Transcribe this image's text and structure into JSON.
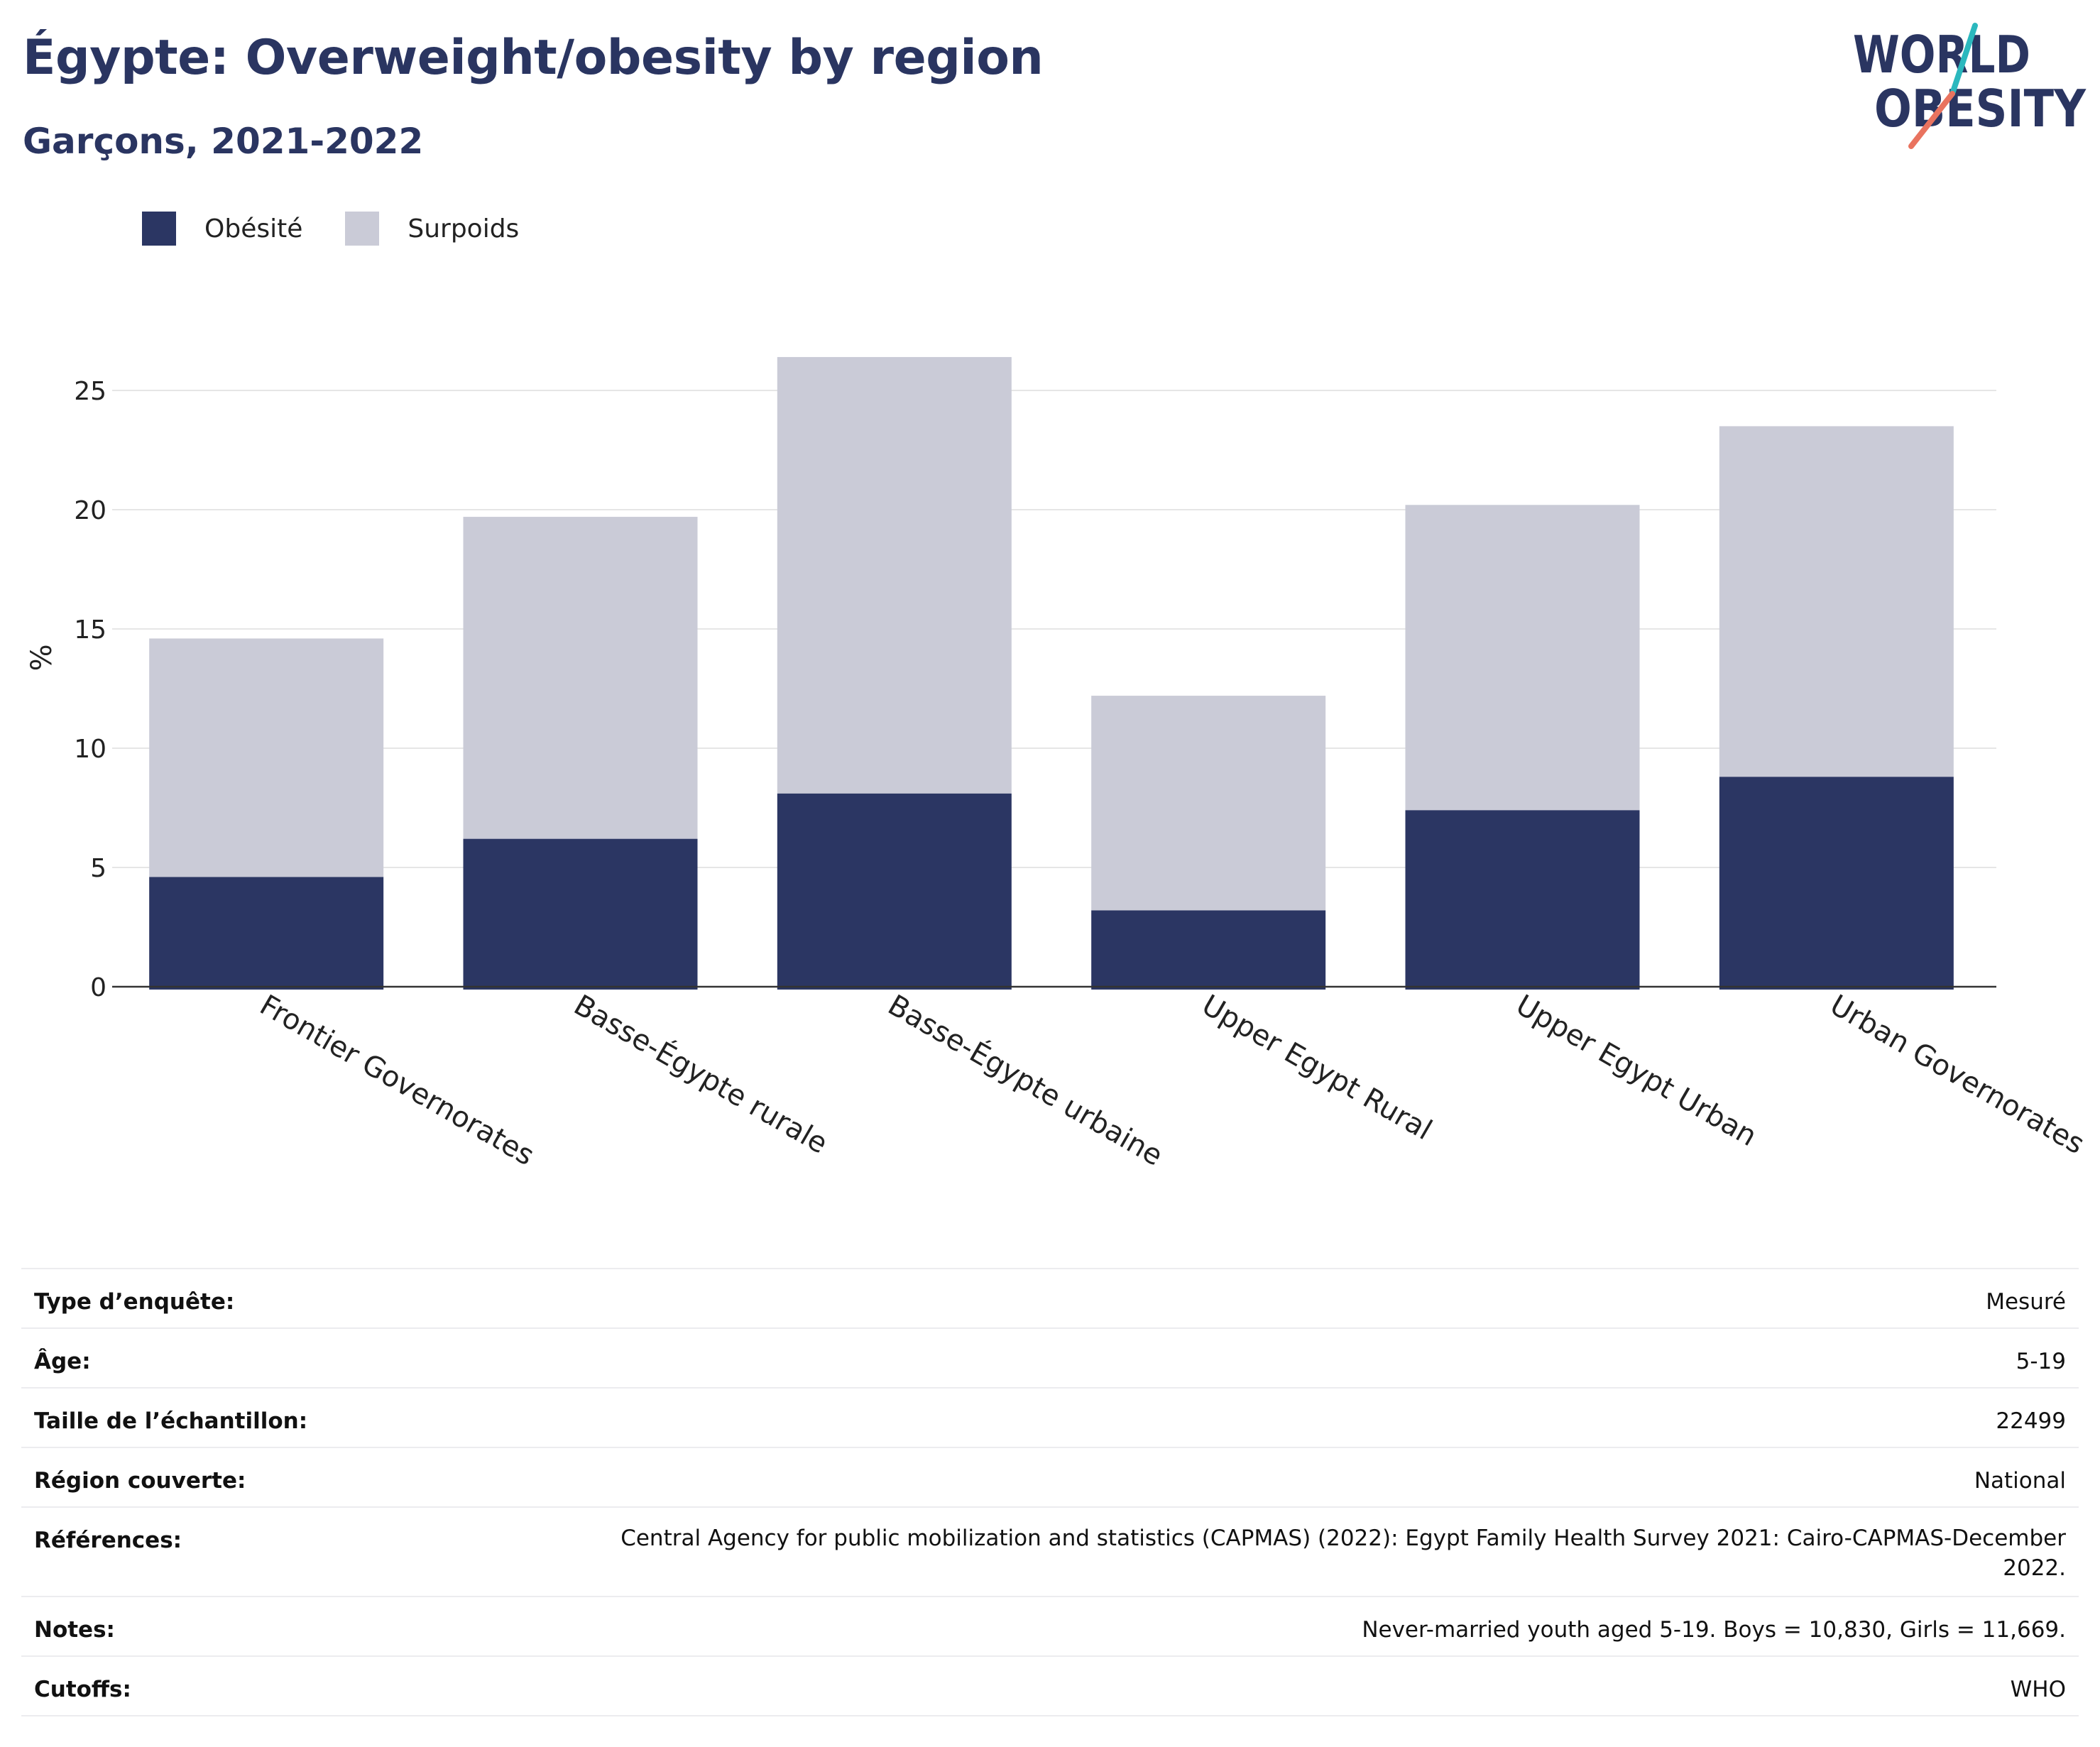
{
  "header": {
    "title": "Égypte: Overweight/obesity by region",
    "subtitle": "Garçons, 2021-2022"
  },
  "logo": {
    "line1": "WORLD",
    "line2": "OBESITY"
  },
  "legend": [
    {
      "label": "Obésité",
      "color": "#2b3663"
    },
    {
      "label": "Surpoids",
      "color": "#cacbd7"
    }
  ],
  "colors": {
    "obesity": "#2b3663",
    "overweight": "#cacbd7",
    "grid": "#e6e6e6",
    "axis": "#333333"
  },
  "chart_data": {
    "type": "bar",
    "stacked": true,
    "categories": [
      "Frontier Governorates",
      "Basse-Égypte rurale",
      "Basse-Égypte urbaine",
      "Upper Egypt Rural",
      "Upper Egypt Urban",
      "Urban Governorates"
    ],
    "series": [
      {
        "name": "Obésité",
        "values": [
          4.6,
          6.2,
          8.1,
          3.2,
          7.4,
          8.8
        ]
      },
      {
        "name": "Surpoids",
        "values": [
          10.0,
          13.5,
          18.3,
          9.0,
          12.8,
          14.7
        ]
      }
    ],
    "ylabel": "%",
    "xlabel": "",
    "ylim": [
      0,
      27
    ],
    "yticks": [
      0,
      5,
      10,
      15,
      20,
      25
    ],
    "grid": true,
    "legend_position": "top-left"
  },
  "meta": [
    {
      "label": "Type d’enquête:",
      "value": "Mesuré"
    },
    {
      "label": "Âge:",
      "value": "5-19"
    },
    {
      "label": "Taille de l’échantillon:",
      "value": "22499"
    },
    {
      "label": "Région couverte:",
      "value": "National"
    },
    {
      "label": "Références:",
      "value": "Central Agency for public mobilization and statistics (CAPMAS) (2022): Egypt Family Health Survey 2021: Cairo-CAPMAS-December 2022."
    },
    {
      "label": "Notes:",
      "value": "Never-married youth aged 5-19. Boys = 10,830, Girls = 11,669."
    },
    {
      "label": "Cutoffs:",
      "value": "WHO"
    }
  ]
}
